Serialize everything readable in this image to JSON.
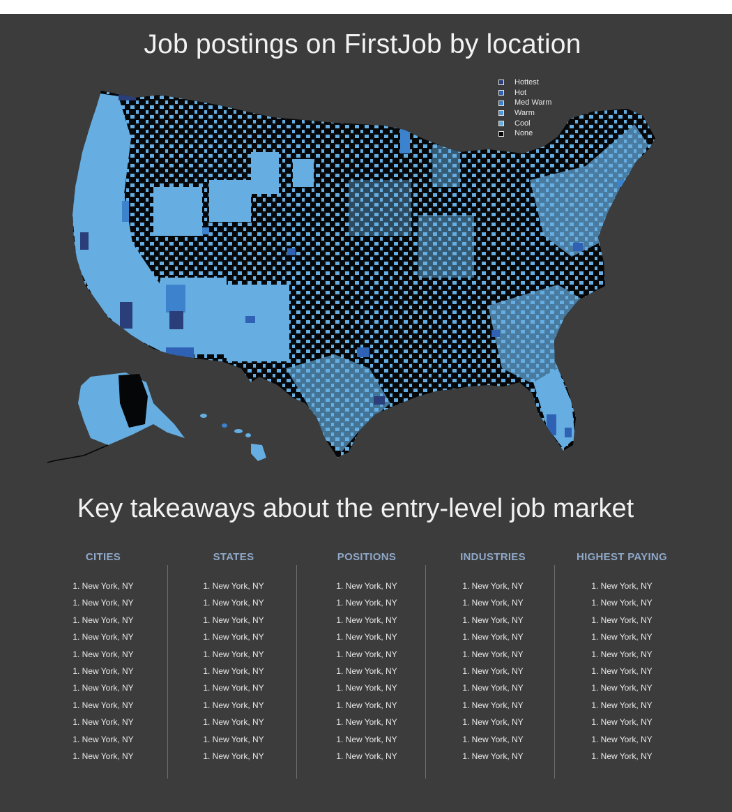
{
  "map": {
    "title": "Job postings on FirstJob by location",
    "legend": [
      {
        "label": "Hottest",
        "color": "#2a3f7a"
      },
      {
        "label": "Hot",
        "color": "#2f62b4"
      },
      {
        "label": "Med Warm",
        "color": "#3c82cc"
      },
      {
        "label": "Warm",
        "color": "#4d98da"
      },
      {
        "label": "Cool",
        "color": "#66aee2"
      },
      {
        "label": "None",
        "color": "#050607"
      }
    ]
  },
  "takeaways": {
    "title": "Key takeaways about the entry-level job market",
    "columns": [
      {
        "header": "CITIES",
        "items": [
          "1. New York, NY",
          "1. New York, NY",
          "1. New York, NY",
          "1. New York, NY",
          "1. New York, NY",
          "1. New York, NY",
          "1. New York, NY",
          "1. New York, NY",
          "1. New York, NY",
          "1. New York, NY",
          "1. New York, NY"
        ]
      },
      {
        "header": "STATES",
        "items": [
          "1. New York, NY",
          "1. New York, NY",
          "1. New York, NY",
          "1. New York, NY",
          "1. New York, NY",
          "1. New York, NY",
          "1. New York, NY",
          "1. New York, NY",
          "1. New York, NY",
          "1. New York, NY",
          "1. New York, NY"
        ]
      },
      {
        "header": "POSITIONS",
        "items": [
          "1. New York, NY",
          "1. New York, NY",
          "1. New York, NY",
          "1. New York, NY",
          "1. New York, NY",
          "1. New York, NY",
          "1. New York, NY",
          "1. New York, NY",
          "1. New York, NY",
          "1. New York, NY",
          "1. New York, NY"
        ]
      },
      {
        "header": "INDUSTRIES",
        "items": [
          "1. New York, NY",
          "1. New York, NY",
          "1. New York, NY",
          "1. New York, NY",
          "1. New York, NY",
          "1. New York, NY",
          "1. New York, NY",
          "1. New York, NY",
          "1. New York, NY",
          "1. New York, NY",
          "1. New York, NY"
        ]
      },
      {
        "header": "HIGHEST PAYING",
        "items": [
          "1. New York, NY",
          "1. New York, NY",
          "1. New York, NY",
          "1. New York, NY",
          "1. New York, NY",
          "1. New York, NY",
          "1. New York, NY",
          "1. New York, NY",
          "1. New York, NY",
          "1. New York, NY",
          "1. New York, NY"
        ]
      }
    ]
  }
}
